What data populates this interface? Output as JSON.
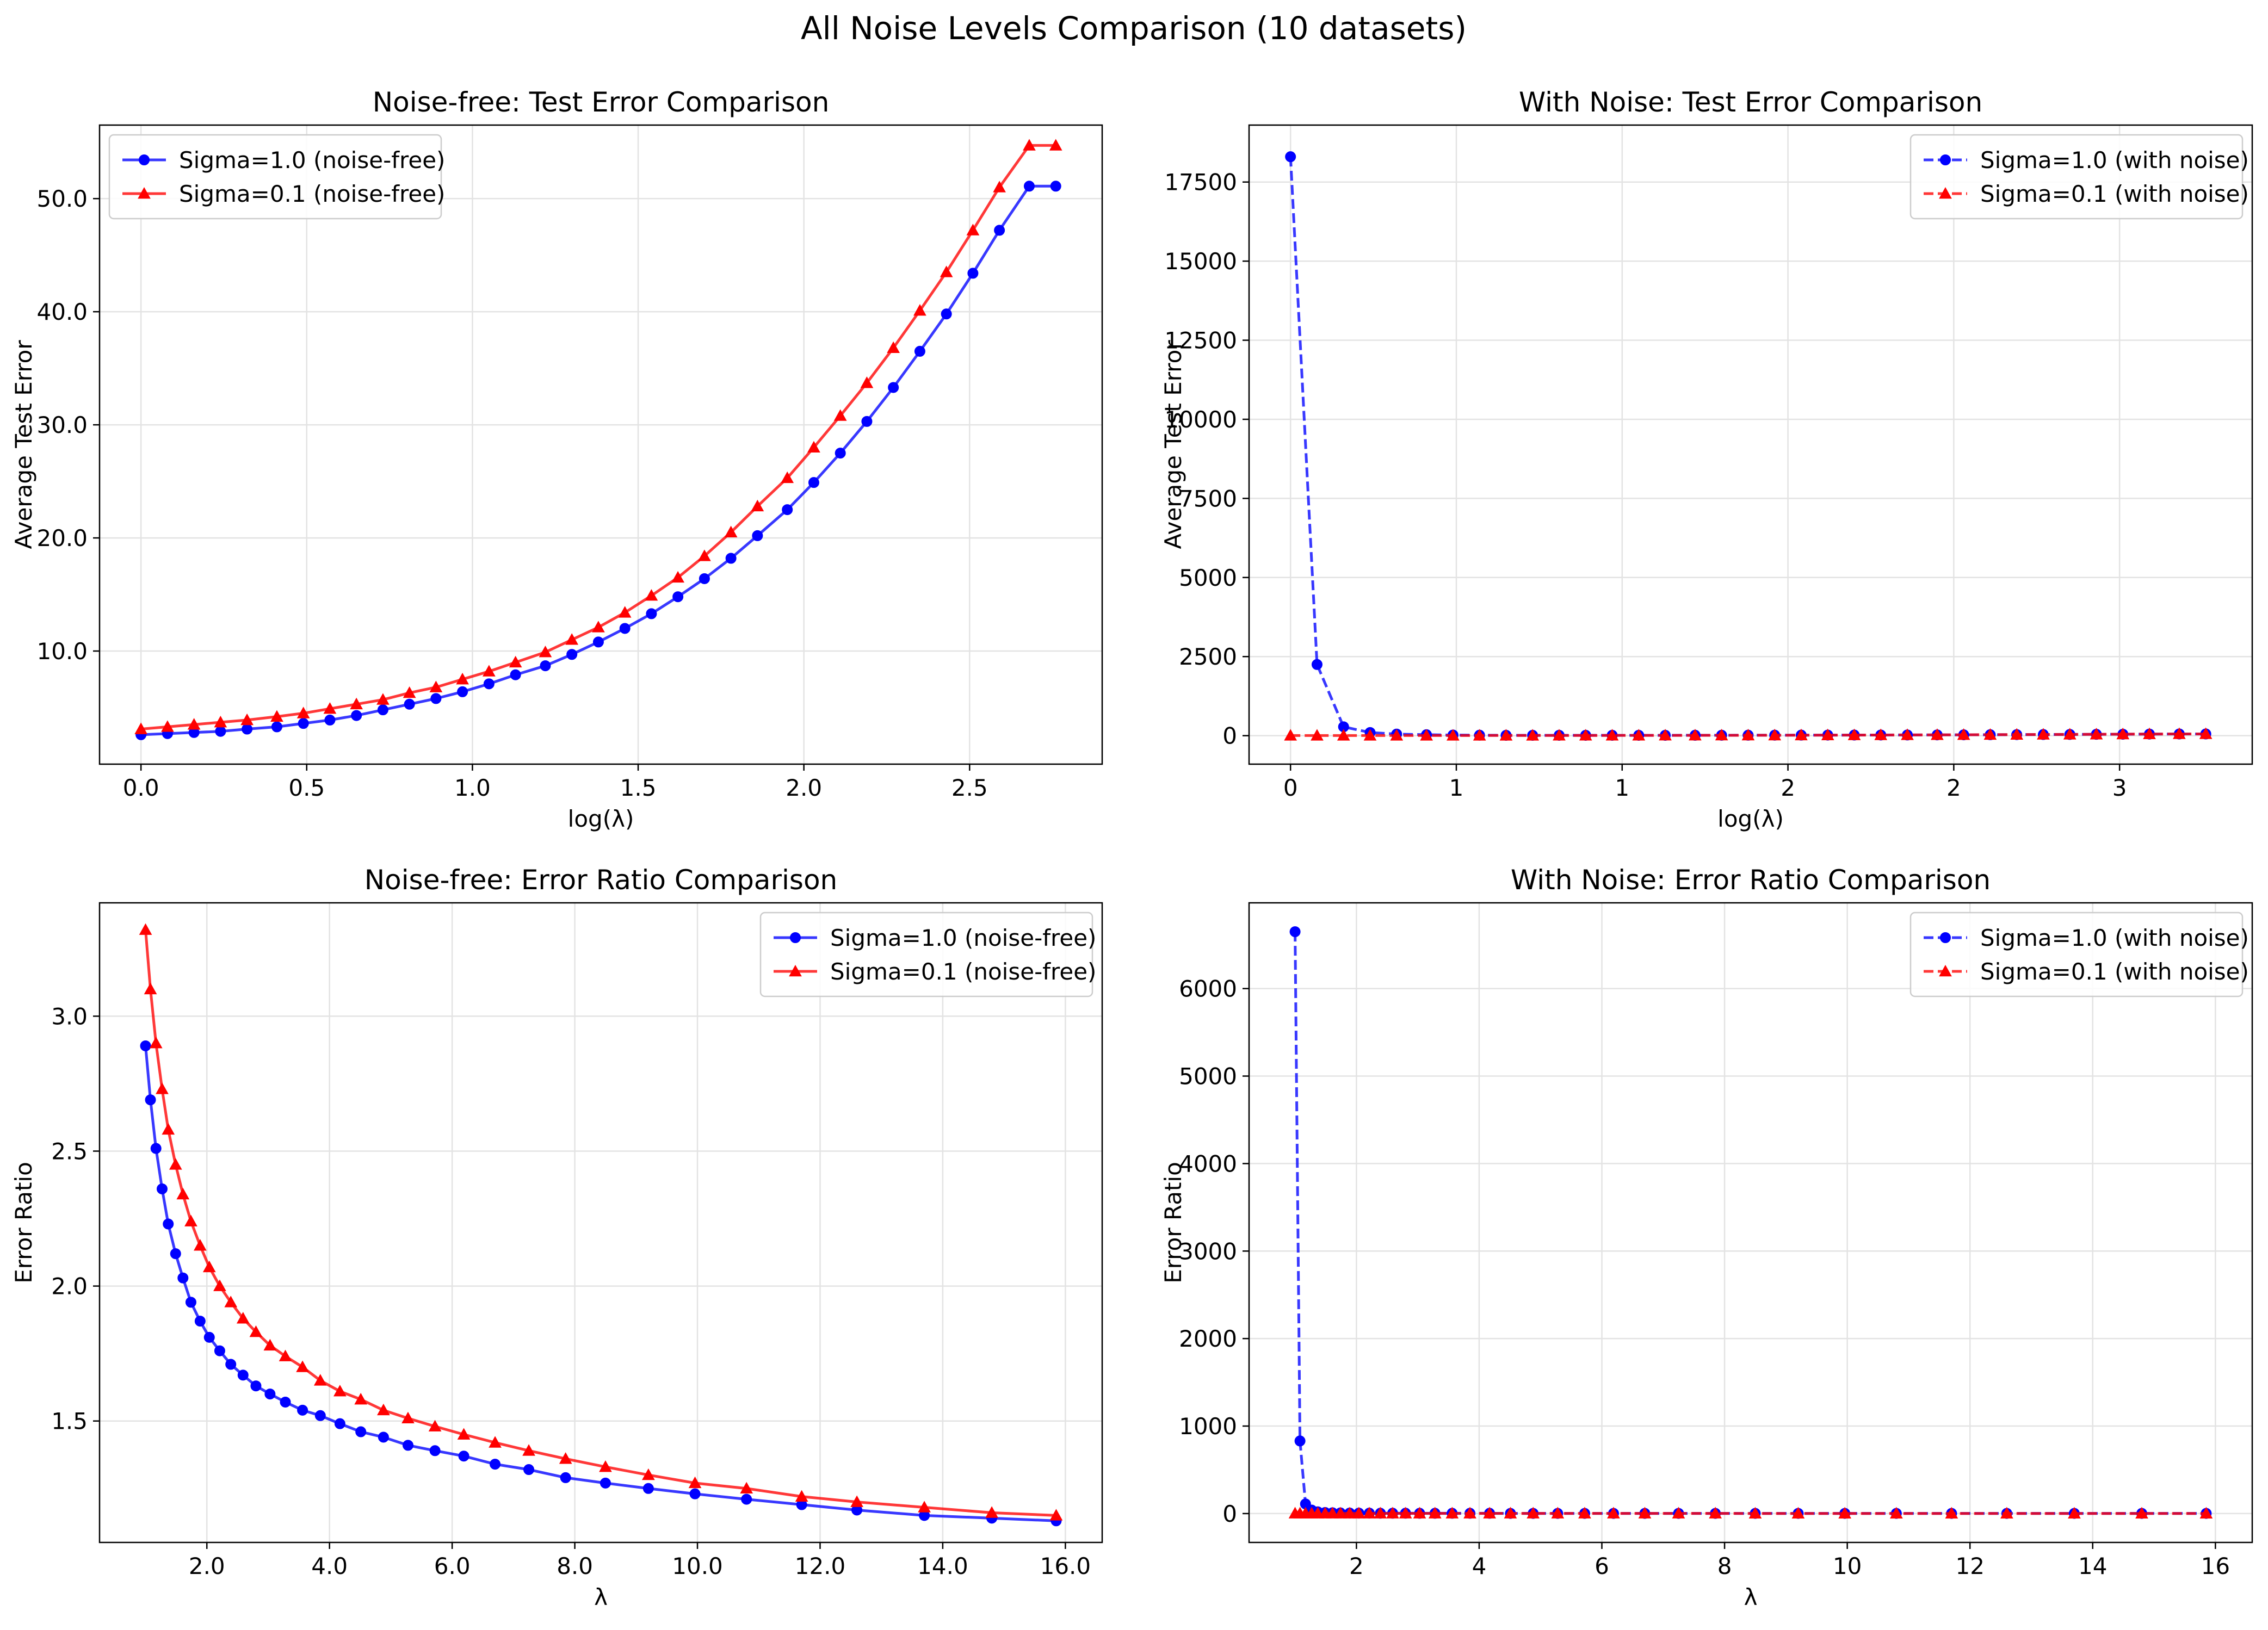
{
  "figure": {
    "title": "All Noise Levels Comparison (10 datasets)"
  },
  "colors": {
    "sigma1": "#0000ff",
    "sigma01": "#ff0000",
    "grid": "#e3e3e3"
  },
  "chart_data": [
    {
      "type": "line",
      "title": "Noise-free: Test Error Comparison",
      "xlabel": "log(λ)",
      "ylabel": "Average Test Error",
      "xlim": [
        -0.125,
        2.9
      ],
      "ylim": [
        0,
        56.5
      ],
      "xticks": [
        0.0,
        0.5,
        1.0,
        1.5,
        2.0,
        2.5
      ],
      "yticks": [
        10,
        20,
        30,
        40,
        50
      ],
      "tick_format": 1,
      "grid": true,
      "legend": "top-left",
      "x": [
        0.0,
        0.08,
        0.16,
        0.24,
        0.32,
        0.41,
        0.49,
        0.57,
        0.65,
        0.73,
        0.81,
        0.89,
        0.97,
        1.05,
        1.13,
        1.22,
        1.3,
        1.38,
        1.46,
        1.54,
        1.62,
        1.7,
        1.78,
        1.86,
        1.95,
        2.03,
        2.11,
        2.19,
        2.27,
        2.35,
        2.43,
        2.51,
        2.59,
        2.68,
        2.76
      ],
      "series": [
        {
          "name": "Sigma=1.0 (noise-free)",
          "color": "#0000ff",
          "marker": "circle",
          "dash": "solid",
          "values": [
            2.6,
            2.7,
            2.8,
            2.9,
            3.1,
            3.3,
            3.6,
            3.9,
            4.3,
            4.8,
            5.3,
            5.8,
            6.4,
            7.1,
            7.9,
            8.7,
            9.7,
            10.8,
            12.0,
            13.3,
            14.8,
            16.4,
            18.2,
            20.2,
            22.5,
            24.9,
            27.5,
            30.3,
            33.3,
            36.5,
            39.8,
            43.4,
            47.2,
            51.1,
            51.1
          ]
        },
        {
          "name": "Sigma=0.1 (noise-free)",
          "color": "#ff0000",
          "marker": "triangle",
          "dash": "solid",
          "values": [
            3.1,
            3.3,
            3.5,
            3.7,
            3.9,
            4.2,
            4.5,
            4.9,
            5.3,
            5.7,
            6.3,
            6.8,
            7.5,
            8.2,
            9.0,
            9.9,
            11.0,
            12.1,
            13.4,
            14.9,
            16.5,
            18.4,
            20.5,
            22.8,
            25.3,
            28.0,
            30.8,
            33.7,
            36.8,
            40.1,
            43.5,
            47.2,
            51.0,
            54.7,
            54.7
          ]
        }
      ]
    },
    {
      "type": "line",
      "title": "With Noise: Test Error Comparison",
      "xlabel": "log(λ)",
      "ylabel": "Average Test Error",
      "xlim": [
        -0.125,
        2.9
      ],
      "ylim": [
        -900,
        19300
      ],
      "xticks": [
        0.0,
        0.5,
        1.0,
        1.5,
        2.0,
        2.5
      ],
      "yticks": [
        0,
        2500,
        5000,
        7500,
        10000,
        12500,
        15000,
        17500
      ],
      "tick_format": 0,
      "grid": true,
      "legend": "top-right",
      "x": [
        0.0,
        0.08,
        0.16,
        0.24,
        0.32,
        0.41,
        0.49,
        0.57,
        0.65,
        0.73,
        0.81,
        0.89,
        0.97,
        1.05,
        1.13,
        1.22,
        1.3,
        1.38,
        1.46,
        1.54,
        1.62,
        1.7,
        1.78,
        1.86,
        1.95,
        2.03,
        2.11,
        2.19,
        2.27,
        2.35,
        2.43,
        2.51,
        2.59,
        2.68,
        2.76
      ],
      "series": [
        {
          "name": "Sigma=1.0 (with noise)",
          "color": "#0000ff",
          "marker": "circle",
          "dash": "dashed",
          "values": [
            18300,
            2250,
            280,
            100,
            50,
            30,
            20,
            15,
            12,
            12,
            12,
            12,
            12,
            12,
            12,
            13,
            14,
            15,
            16,
            17,
            18,
            19,
            20,
            22,
            25,
            27,
            30,
            33,
            36,
            39,
            43,
            46,
            50,
            54,
            54
          ]
        },
        {
          "name": "Sigma=0.1 (with noise)",
          "color": "#ff0000",
          "marker": "triangle",
          "dash": "dashed",
          "values": [
            5,
            5,
            5,
            5,
            5,
            5,
            5,
            6,
            6,
            6,
            7,
            7,
            8,
            8,
            9,
            10,
            11,
            12,
            13,
            15,
            17,
            18,
            20,
            23,
            25,
            28,
            31,
            34,
            37,
            40,
            43,
            47,
            51,
            55,
            55
          ]
        }
      ]
    },
    {
      "type": "line",
      "title": "Noise-free: Error Ratio Comparison",
      "xlabel": "λ",
      "ylabel": "Error Ratio",
      "xlim": [
        0.25,
        16.6
      ],
      "ylim": [
        1.05,
        3.42
      ],
      "xticks": [
        2,
        4,
        6,
        8,
        10,
        12,
        14,
        16
      ],
      "yticks": [
        1.5,
        2.0,
        2.5,
        3.0
      ],
      "tick_format": 1,
      "grid": true,
      "legend": "top-right",
      "x": [
        1.0,
        1.08,
        1.17,
        1.27,
        1.37,
        1.49,
        1.61,
        1.74,
        1.89,
        2.04,
        2.21,
        2.39,
        2.59,
        2.8,
        3.03,
        3.28,
        3.56,
        3.85,
        4.17,
        4.51,
        4.88,
        5.28,
        5.72,
        6.19,
        6.7,
        7.25,
        7.85,
        8.5,
        9.2,
        9.96,
        10.8,
        11.7,
        12.6,
        13.7,
        14.8,
        15.85
      ],
      "series": [
        {
          "name": "Sigma=1.0 (noise-free)",
          "color": "#0000ff",
          "marker": "circle",
          "dash": "solid",
          "values": [
            2.89,
            2.69,
            2.51,
            2.36,
            2.23,
            2.12,
            2.03,
            1.94,
            1.87,
            1.81,
            1.76,
            1.71,
            1.67,
            1.63,
            1.6,
            1.57,
            1.54,
            1.52,
            1.49,
            1.46,
            1.44,
            1.41,
            1.39,
            1.37,
            1.34,
            1.32,
            1.29,
            1.27,
            1.25,
            1.23,
            1.21,
            1.19,
            1.17,
            1.15,
            1.14,
            1.13
          ]
        },
        {
          "name": "Sigma=0.1 (noise-free)",
          "color": "#ff0000",
          "marker": "triangle",
          "dash": "solid",
          "values": [
            3.32,
            3.1,
            2.9,
            2.73,
            2.58,
            2.45,
            2.34,
            2.24,
            2.15,
            2.07,
            2.0,
            1.94,
            1.88,
            1.83,
            1.78,
            1.74,
            1.7,
            1.65,
            1.61,
            1.58,
            1.54,
            1.51,
            1.48,
            1.45,
            1.42,
            1.39,
            1.36,
            1.33,
            1.3,
            1.27,
            1.25,
            1.22,
            1.2,
            1.18,
            1.16,
            1.15
          ]
        }
      ]
    },
    {
      "type": "line",
      "title": "With Noise: Error Ratio Comparison",
      "xlabel": "λ",
      "ylabel": "Error Ratio",
      "xlim": [
        0.25,
        16.6
      ],
      "ylim": [
        -330,
        6980
      ],
      "xticks": [
        2,
        4,
        6,
        8,
        10,
        12,
        14,
        16
      ],
      "yticks": [
        0,
        1000,
        2000,
        3000,
        4000,
        5000,
        6000
      ],
      "tick_format": 0,
      "grid": true,
      "legend": "top-right",
      "x": [
        1.0,
        1.08,
        1.17,
        1.27,
        1.37,
        1.49,
        1.61,
        1.74,
        1.89,
        2.04,
        2.21,
        2.39,
        2.59,
        2.8,
        3.03,
        3.28,
        3.56,
        3.85,
        4.17,
        4.51,
        4.88,
        5.28,
        5.72,
        6.19,
        6.7,
        7.25,
        7.85,
        8.5,
        9.2,
        9.96,
        10.8,
        11.7,
        12.6,
        13.7,
        14.8,
        15.85
      ],
      "series": [
        {
          "name": "Sigma=1.0 (with noise)",
          "color": "#0000ff",
          "marker": "circle",
          "dash": "dashed",
          "values": [
            6650,
            830,
            110,
            40,
            20,
            12,
            9,
            7,
            6,
            5,
            5,
            4,
            4,
            4,
            3,
            3,
            3,
            3,
            3,
            2,
            2,
            2,
            2,
            2,
            2,
            2,
            2,
            2,
            2,
            2,
            2,
            2,
            2,
            2,
            2,
            2
          ]
        },
        {
          "name": "Sigma=0.1 (with noise)",
          "color": "#ff0000",
          "marker": "triangle",
          "dash": "dashed",
          "values": [
            2,
            2,
            2,
            2,
            2,
            2,
            2,
            2,
            2,
            2,
            2,
            2,
            2,
            2,
            2,
            2,
            2,
            2,
            2,
            2,
            2,
            2,
            2,
            2,
            2,
            2,
            2,
            1,
            1,
            1,
            1,
            1,
            1,
            1,
            1,
            1
          ]
        }
      ]
    }
  ]
}
